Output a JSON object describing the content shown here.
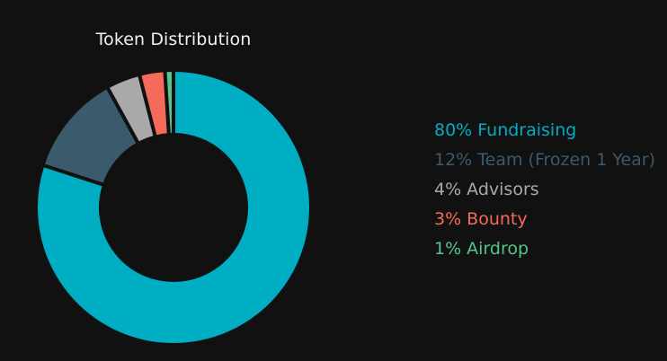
{
  "chart_data": {
    "type": "pie",
    "title": "Token Distribution",
    "donut": true,
    "slices": [
      {
        "label": "80% Fundraising",
        "value": 80,
        "color": "#00aec3"
      },
      {
        "label": "12% Team (Frozen 1 Year)",
        "value": 12,
        "color": "#3b5a6b"
      },
      {
        "label": "4% Advisors",
        "value": 4,
        "color": "#a9a9a9"
      },
      {
        "label": "3% Bounty",
        "value": 3,
        "color": "#f46a5b"
      },
      {
        "label": "1% Airdrop",
        "value": 1,
        "color": "#56c48b"
      }
    ],
    "legend": "right"
  },
  "colors": {
    "background": "#111111",
    "title_text": "#f0f0f0",
    "slice_border": "#111111"
  }
}
